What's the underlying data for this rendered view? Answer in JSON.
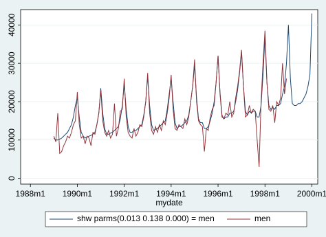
{
  "chart_data": {
    "type": "line",
    "x_label": "mydate",
    "x": [
      348,
      349,
      350,
      351,
      352,
      353,
      354,
      355,
      356,
      357,
      358,
      359,
      360,
      361,
      362,
      363,
      364,
      365,
      366,
      367,
      368,
      369,
      370,
      371,
      372,
      373,
      374,
      375,
      376,
      377,
      378,
      379,
      380,
      381,
      382,
      383,
      384,
      385,
      386,
      387,
      388,
      389,
      390,
      391,
      392,
      393,
      394,
      395,
      396,
      397,
      398,
      399,
      400,
      401,
      402,
      403,
      404,
      405,
      406,
      407,
      408,
      409,
      410,
      411,
      412,
      413,
      414,
      415,
      416,
      417,
      418,
      419,
      420,
      421,
      422,
      423,
      424,
      425,
      426,
      427,
      428,
      429,
      430,
      431,
      432,
      433,
      434,
      435,
      436,
      437,
      438,
      439,
      440,
      441,
      442,
      443,
      444,
      445,
      446,
      447,
      448,
      449,
      450,
      451,
      452,
      453,
      454,
      455,
      456,
      457,
      458,
      459,
      460,
      461,
      462,
      463,
      464,
      465,
      466,
      467,
      468,
      469,
      470,
      471,
      472,
      473,
      474,
      475,
      476,
      477,
      478,
      479,
      480
    ],
    "series": [
      {
        "name": "shw parms(0.013 0.138 0.000) = men",
        "color": "#1a476f",
        "values": [
          10500,
          10000,
          10000,
          10200,
          10500,
          11000,
          11500,
          12000,
          13000,
          14000,
          16000,
          19000,
          21000,
          16000,
          12000,
          11000,
          10500,
          10800,
          11000,
          11200,
          11500,
          12000,
          14000,
          17000,
          23500,
          17000,
          13000,
          11500,
          11500,
          11800,
          12000,
          12500,
          13000,
          13500,
          15500,
          19000,
          24500,
          18000,
          13500,
          12000,
          12000,
          12500,
          12500,
          13000,
          13500,
          14000,
          16500,
          20000,
          26500,
          19000,
          14000,
          12500,
          12800,
          13000,
          13500,
          14000,
          14500,
          15000,
          18000,
          22000,
          26000,
          20000,
          14500,
          13000,
          13500,
          13500,
          14000,
          14500,
          15000,
          16500,
          20000,
          24000,
          29500,
          21000,
          15500,
          14500,
          14500,
          13000,
          13000,
          13500,
          15000,
          17000,
          20000,
          25000,
          32000,
          22500,
          16500,
          15500,
          16000,
          16000,
          17000,
          17000,
          17500,
          20000,
          23000,
          27500,
          33000,
          24000,
          17500,
          16500,
          17500,
          17000,
          17500,
          17500,
          16000,
          16000,
          19000,
          27000,
          37000,
          25000,
          19000,
          18000,
          18500,
          18000,
          19000,
          19000,
          19500,
          22000,
          24000,
          30000,
          40000,
          26000,
          19500,
          19000,
          19000,
          19500,
          19500,
          20000,
          21000,
          22000,
          24000,
          27000,
          43000
        ]
      },
      {
        "name": "men",
        "color": "#90353b",
        "values": [
          11000,
          9500,
          17000,
          6500,
          7000,
          8500,
          9500,
          11000,
          10500,
          12000,
          14000,
          15000,
          22500,
          14000,
          10500,
          11000,
          9000,
          11000,
          10500,
          8500,
          12000,
          11500,
          14000,
          17000,
          23000,
          15000,
          12000,
          11000,
          12500,
          10500,
          11500,
          19500,
          11000,
          13000,
          17500,
          18000,
          26000,
          16000,
          12000,
          11000,
          10500,
          13000,
          11000,
          12000,
          14000,
          13500,
          16000,
          20000,
          27500,
          17000,
          12500,
          11500,
          13500,
          12000,
          14000,
          12500,
          15000,
          14000,
          17000,
          21000,
          27000,
          18000,
          13000,
          12500,
          14000,
          13500,
          13000,
          15500,
          14000,
          16000,
          20000,
          24000,
          31000,
          20000,
          15000,
          14000,
          13500,
          7000,
          13000,
          12500,
          16000,
          18000,
          19000,
          25000,
          32000,
          22000,
          16000,
          15500,
          17000,
          16500,
          20000,
          16000,
          17000,
          21000,
          24000,
          28000,
          33500,
          24000,
          16000,
          16500,
          19000,
          17000,
          18000,
          17500,
          10000,
          3000,
          20000,
          30000,
          38500,
          25000,
          18000,
          17500,
          19000,
          14500,
          20000,
          19000,
          21000,
          30000,
          22000,
          26000,
          null,
          null,
          null,
          null,
          null,
          null,
          null,
          null,
          null,
          null,
          null,
          null,
          null
        ]
      }
    ],
    "xlim": [
      331,
      483
    ],
    "xticks": [
      {
        "value": 336,
        "label": "1988m1"
      },
      {
        "value": 360,
        "label": "1990m1"
      },
      {
        "value": 384,
        "label": "1992m1"
      },
      {
        "value": 408,
        "label": "1994m1"
      },
      {
        "value": 432,
        "label": "1996m1"
      },
      {
        "value": 456,
        "label": "1998m1"
      },
      {
        "value": 480,
        "label": "2000m1"
      }
    ],
    "ylim": [
      -1500,
      44000
    ],
    "yticks": [
      0,
      10000,
      20000,
      30000,
      40000
    ],
    "grid": true,
    "legend": "bottom"
  }
}
